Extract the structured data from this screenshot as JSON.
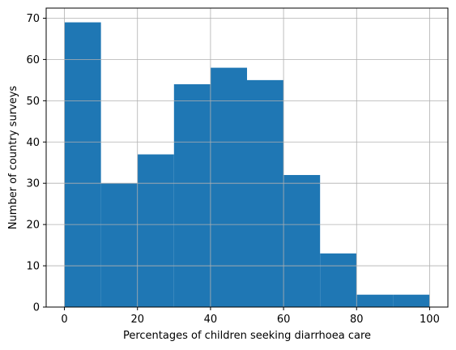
{
  "chart_data": {
    "type": "bar",
    "title": "",
    "xlabel": "Percentages of children seeking diarrhoea care",
    "ylabel": "Number of country surveys",
    "bin_edges": [
      0,
      10,
      20,
      30,
      40,
      50,
      60,
      70,
      80,
      90,
      100
    ],
    "values": [
      69,
      30,
      37,
      54,
      58,
      55,
      32,
      13,
      3,
      3
    ],
    "xlim": [
      -5,
      105
    ],
    "ylim": [
      0,
      72.45
    ],
    "x_ticks": [
      0,
      20,
      40,
      60,
      80,
      100
    ],
    "y_ticks": [
      0,
      10,
      20,
      30,
      40,
      50,
      60,
      70
    ],
    "grid": true,
    "bar_color": "#1f77b4",
    "grid_color": "#b0b0b0"
  }
}
